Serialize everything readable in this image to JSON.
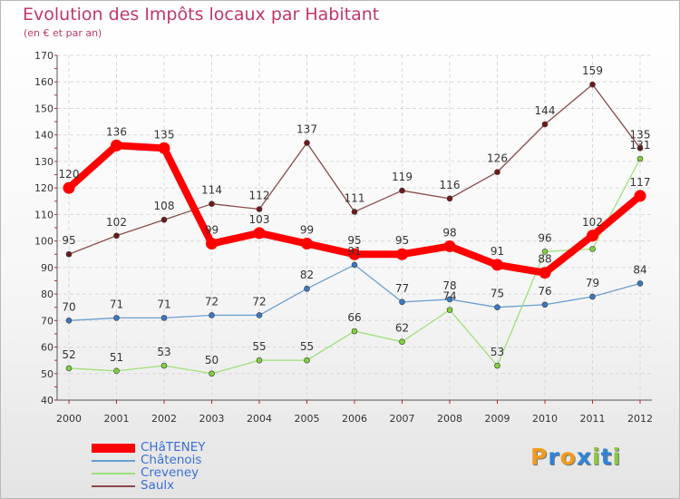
{
  "title": "Evolution des Impôts locaux par Habitant",
  "subtitle": "(en € et par an)",
  "logo": {
    "text": "Proxiti",
    "letters": [
      "P",
      "r",
      "o",
      "x",
      "i",
      "t",
      "i"
    ],
    "colors": [
      "#f29a1c",
      "#2f83d6",
      "#f29a1c",
      "#2f83d6",
      "#8cc63f",
      "#2f83d6",
      "#8cc63f"
    ]
  },
  "chart_data": {
    "type": "line",
    "title": "Evolution des Impôts locaux par Habitant",
    "subtitle": "(en € et par an)",
    "xlabel": "",
    "ylabel": "",
    "categories": [
      "2000",
      "2001",
      "2002",
      "2003",
      "2004",
      "2005",
      "2006",
      "2007",
      "2008",
      "2009",
      "2010",
      "2011",
      "2012"
    ],
    "ylim": [
      40,
      170
    ],
    "yticks": [
      40,
      50,
      60,
      70,
      80,
      90,
      100,
      110,
      120,
      130,
      140,
      150,
      160,
      170
    ],
    "grid": true,
    "legend_position": "bottom-left",
    "series": [
      {
        "name": "CHâTENEY",
        "values": [
          120,
          136,
          135,
          99,
          103,
          99,
          95,
          95,
          98,
          91,
          88,
          102,
          117
        ],
        "color": "#ff0000",
        "marker_color": "#ff0000",
        "emphasis": "thick"
      },
      {
        "name": "Châtenois",
        "values": [
          70,
          71,
          71,
          72,
          72,
          82,
          91,
          77,
          78,
          75,
          76,
          79,
          84
        ],
        "color": "#6b9fd0",
        "marker_color": "#3b79c0",
        "emphasis": "normal"
      },
      {
        "name": "Creveney",
        "values": [
          52,
          51,
          53,
          50,
          55,
          55,
          66,
          62,
          74,
          53,
          96,
          97,
          131
        ],
        "color": "#9fe07a",
        "marker_color": "#7fcf3f",
        "emphasis": "normal"
      },
      {
        "name": "Saulx",
        "values": [
          95,
          102,
          108,
          114,
          112,
          137,
          111,
          119,
          116,
          126,
          144,
          159,
          135
        ],
        "color": "#8b4a4a",
        "marker_color": "#6e1a1a",
        "emphasis": "normal"
      }
    ],
    "data_labels": [
      {
        "series": "CHâTENEY",
        "labels": [
          "120",
          "136",
          "135",
          "99",
          "103",
          "99",
          "95",
          "95",
          "98",
          "91",
          "88",
          "102",
          "117"
        ]
      },
      {
        "series": "Châtenois",
        "labels": [
          "70",
          "71",
          "71",
          "72",
          "72",
          "82",
          "91",
          "77",
          "78",
          "75",
          "76",
          "79",
          "84"
        ]
      },
      {
        "series": "Creveney",
        "labels": [
          "52",
          "51",
          "53",
          "50",
          "55",
          "55",
          "66",
          "62",
          "74",
          "53",
          "96",
          "",
          "131"
        ]
      },
      {
        "series": "Saulx",
        "labels": [
          "95",
          "102",
          "108",
          "114",
          "112",
          "137",
          "111",
          "119",
          "116",
          "126",
          "144",
          "159",
          "135"
        ]
      }
    ]
  }
}
